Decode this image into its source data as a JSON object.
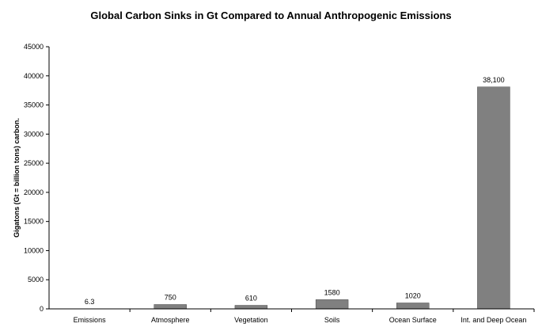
{
  "chart_data": {
    "type": "bar",
    "title": "Global Carbon Sinks in Gt Compared to Annual Anthropogenic Emissions",
    "xlabel": "",
    "ylabel": "Gigatons (Gt = billion tons) carbon.",
    "categories": [
      "Emissions",
      "Atmosphere",
      "Vegetation",
      "Soils",
      "Ocean Surface",
      "Int. and Deep Ocean"
    ],
    "values": [
      6.3,
      750,
      610,
      1580,
      1020,
      38100
    ],
    "data_labels": [
      "6.3",
      "750",
      "610",
      "1580",
      "1020",
      "38,100"
    ],
    "ylim": [
      0,
      45000
    ],
    "yticks": [
      0,
      5000,
      10000,
      15000,
      20000,
      25000,
      30000,
      35000,
      40000,
      45000
    ],
    "grid": false,
    "legend": "none",
    "bar_color": "#808080"
  }
}
